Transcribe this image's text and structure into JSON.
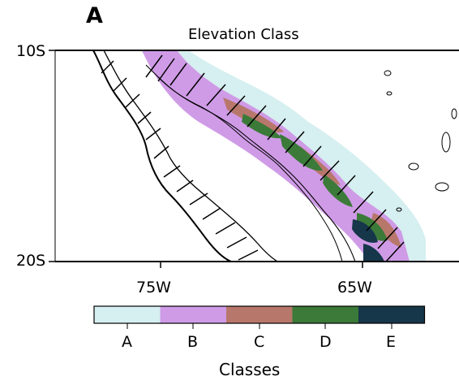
{
  "panel": {
    "letter": "A",
    "title": "Elevation Class"
  },
  "axes": {
    "y_ticks": [
      "10S",
      "20S"
    ],
    "x_ticks": [
      "75W",
      "65W"
    ]
  },
  "colorbar": {
    "title": "Classes",
    "classes": [
      {
        "label": "A",
        "color": "#d6eff0"
      },
      {
        "label": "B",
        "color": "#cf9be6"
      },
      {
        "label": "C",
        "color": "#b8776b"
      },
      {
        "label": "D",
        "color": "#3b7a39"
      },
      {
        "label": "E",
        "color": "#16364a"
      }
    ]
  },
  "map": {
    "extent": {
      "lon": [
        -80,
        -60
      ],
      "lat": [
        -20,
        -10
      ]
    },
    "hatching": "diagonal lines over Andean highlands",
    "contours": "black outline contours"
  }
}
